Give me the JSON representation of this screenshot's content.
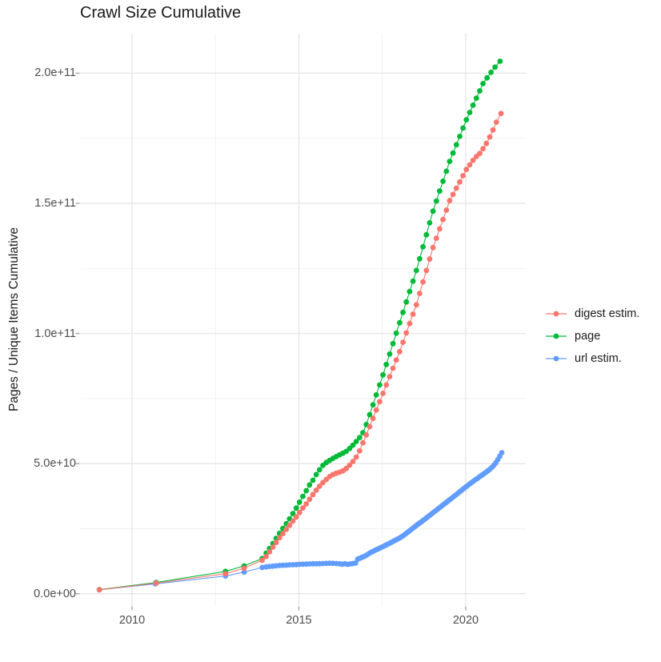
{
  "chart_data": {
    "type": "scatter",
    "title": "Crawl Size Cumulative",
    "xlabel": "",
    "ylabel": "Pages / Unique Items Cumulative",
    "value_unit": "1e9 (billions); y tick labels shown in scientific notation",
    "grid": true,
    "legend_position": "right-middle",
    "background": "#ffffff",
    "grid_major_color": "#e7e7e7",
    "grid_minor_color": "#f1f1f1",
    "axis_tick_color": "#999999",
    "x_domain": [
      2008.44,
      2021.8
    ],
    "y_domain_e9": [
      -4.7,
      215.2
    ],
    "x_axis": {
      "major_ticks": [
        {
          "year": 2010,
          "label": "2010"
        },
        {
          "year": 2015,
          "label": "2015"
        },
        {
          "year": 2020,
          "label": "2020"
        }
      ],
      "minor_ticks_years": [
        2012.5,
        2017.5
      ]
    },
    "y_axis": {
      "major_ticks": [
        {
          "value_e9": 0,
          "label": "0.0e+00"
        },
        {
          "value_e9": 50,
          "label": "5.0e+10"
        },
        {
          "value_e9": 100,
          "label": "1.0e+11"
        },
        {
          "value_e9": 150,
          "label": "1.5e+11"
        },
        {
          "value_e9": 200,
          "label": "2.0e+11"
        }
      ],
      "minor_ticks_e9": [
        25,
        75,
        125,
        175
      ]
    },
    "point_draw_order": [
      "page",
      "url estim.",
      "digest estim."
    ],
    "series": [
      {
        "name": "digest estim.",
        "color": "#F8766D",
        "points_year_value_e9": [
          [
            2009.02,
            1.5
          ],
          [
            2010.72,
            4.05
          ],
          [
            2012.8,
            7.7
          ],
          [
            2013.36,
            9.8
          ],
          [
            2013.9,
            12.9
          ],
          [
            2014.02,
            14.3
          ],
          [
            2014.12,
            16.1
          ],
          [
            2014.22,
            17.9
          ],
          [
            2014.32,
            19.7
          ],
          [
            2014.42,
            21.5
          ],
          [
            2014.52,
            23.1
          ],
          [
            2014.62,
            24.7
          ],
          [
            2014.72,
            26.3
          ],
          [
            2014.82,
            27.9
          ],
          [
            2014.92,
            29.5
          ],
          [
            2015.02,
            31.2
          ],
          [
            2015.12,
            32.9
          ],
          [
            2015.22,
            34.5
          ],
          [
            2015.32,
            36.3
          ],
          [
            2015.42,
            38.1
          ],
          [
            2015.52,
            39.8
          ],
          [
            2015.62,
            41.3
          ],
          [
            2015.72,
            42.7
          ],
          [
            2015.82,
            43.9
          ],
          [
            2015.92,
            45.0
          ],
          [
            2016.02,
            45.8
          ],
          [
            2016.12,
            46.3
          ],
          [
            2016.22,
            46.7
          ],
          [
            2016.32,
            47.2
          ],
          [
            2016.42,
            48.1
          ],
          [
            2016.52,
            49.4
          ],
          [
            2016.62,
            50.8
          ],
          [
            2016.72,
            52.5
          ],
          [
            2016.82,
            54.9
          ],
          [
            2016.92,
            58.0
          ],
          [
            2017.02,
            61.0
          ],
          [
            2017.12,
            64.2
          ],
          [
            2017.22,
            67.4
          ],
          [
            2017.32,
            70.6
          ],
          [
            2017.42,
            73.8
          ],
          [
            2017.52,
            77.0
          ],
          [
            2017.62,
            80.2
          ],
          [
            2017.72,
            83.4
          ],
          [
            2017.82,
            86.6
          ],
          [
            2017.92,
            89.8
          ],
          [
            2018.02,
            93.0
          ],
          [
            2018.12,
            96.6
          ],
          [
            2018.22,
            100.2
          ],
          [
            2018.32,
            103.8
          ],
          [
            2018.42,
            107.4
          ],
          [
            2018.52,
            111.0
          ],
          [
            2018.62,
            115.4
          ],
          [
            2018.72,
            119.8
          ],
          [
            2018.82,
            124.2
          ],
          [
            2018.92,
            128.6
          ],
          [
            2019.02,
            133.0
          ],
          [
            2019.12,
            136.6
          ],
          [
            2019.22,
            140.2
          ],
          [
            2019.32,
            143.8
          ],
          [
            2019.42,
            147.4
          ],
          [
            2019.52,
            151.0
          ],
          [
            2019.62,
            153.4
          ],
          [
            2019.72,
            155.8
          ],
          [
            2019.82,
            158.2
          ],
          [
            2019.92,
            160.6
          ],
          [
            2020.02,
            163.0
          ],
          [
            2020.12,
            164.8
          ],
          [
            2020.22,
            166.5
          ],
          [
            2020.32,
            168.0
          ],
          [
            2020.42,
            169.2
          ],
          [
            2020.52,
            171.0
          ],
          [
            2020.62,
            173.0
          ],
          [
            2020.72,
            175.5
          ],
          [
            2020.82,
            178.2
          ],
          [
            2020.92,
            181.2
          ],
          [
            2021.06,
            184.5
          ]
        ]
      },
      {
        "name": "page",
        "color": "#00BA38",
        "points_year_value_e9": [
          [
            2009.02,
            1.6
          ],
          [
            2010.72,
            4.3
          ],
          [
            2012.8,
            8.6
          ],
          [
            2013.36,
            10.7
          ],
          [
            2013.9,
            13.5
          ],
          [
            2014.02,
            15.6
          ],
          [
            2014.12,
            17.4
          ],
          [
            2014.22,
            19.3
          ],
          [
            2014.32,
            21.3
          ],
          [
            2014.42,
            23.2
          ],
          [
            2014.52,
            25.1
          ],
          [
            2014.62,
            26.9
          ],
          [
            2014.72,
            28.8
          ],
          [
            2014.82,
            30.8
          ],
          [
            2014.92,
            32.9
          ],
          [
            2015.02,
            35.2
          ],
          [
            2015.12,
            37.4
          ],
          [
            2015.22,
            39.6
          ],
          [
            2015.32,
            41.8
          ],
          [
            2015.42,
            43.6
          ],
          [
            2015.52,
            45.8
          ],
          [
            2015.62,
            47.6
          ],
          [
            2015.72,
            49.3
          ],
          [
            2015.82,
            50.4
          ],
          [
            2015.92,
            51.2
          ],
          [
            2016.02,
            52.0
          ],
          [
            2016.12,
            52.7
          ],
          [
            2016.22,
            53.4
          ],
          [
            2016.32,
            54.0
          ],
          [
            2016.42,
            54.7
          ],
          [
            2016.52,
            55.8
          ],
          [
            2016.62,
            57.1
          ],
          [
            2016.72,
            58.5
          ],
          [
            2016.82,
            60.0
          ],
          [
            2016.92,
            61.9
          ],
          [
            2017.02,
            65.0
          ],
          [
            2017.12,
            68.8
          ],
          [
            2017.22,
            72.6
          ],
          [
            2017.32,
            76.4
          ],
          [
            2017.42,
            80.2
          ],
          [
            2017.52,
            84.1
          ],
          [
            2017.62,
            88.1
          ],
          [
            2017.72,
            92.1
          ],
          [
            2017.82,
            96.1
          ],
          [
            2017.92,
            100.1
          ],
          [
            2018.02,
            104.1
          ],
          [
            2018.12,
            108.1
          ],
          [
            2018.22,
            112.1
          ],
          [
            2018.32,
            116.1
          ],
          [
            2018.42,
            120.1
          ],
          [
            2018.52,
            124.2
          ],
          [
            2018.62,
            128.7
          ],
          [
            2018.72,
            133.3
          ],
          [
            2018.82,
            137.9
          ],
          [
            2018.92,
            142.5
          ],
          [
            2019.02,
            147.0
          ],
          [
            2019.12,
            150.9
          ],
          [
            2019.22,
            154.7
          ],
          [
            2019.32,
            158.5
          ],
          [
            2019.42,
            162.3
          ],
          [
            2019.52,
            166.1
          ],
          [
            2019.62,
            169.3
          ],
          [
            2019.72,
            172.5
          ],
          [
            2019.82,
            175.7
          ],
          [
            2019.92,
            178.9
          ],
          [
            2020.02,
            182.1
          ],
          [
            2020.12,
            184.9
          ],
          [
            2020.22,
            187.7
          ],
          [
            2020.32,
            190.4
          ],
          [
            2020.42,
            193.2
          ],
          [
            2020.52,
            196.0
          ],
          [
            2020.64,
            198.2
          ],
          [
            2020.76,
            200.3
          ],
          [
            2020.88,
            202.3
          ],
          [
            2021.03,
            204.6
          ]
        ]
      },
      {
        "name": "url estim.",
        "color": "#619CFF",
        "points_year_value_e9": [
          [
            2009.02,
            1.5
          ],
          [
            2010.7,
            3.8
          ],
          [
            2012.8,
            6.8
          ],
          [
            2013.36,
            8.3
          ],
          [
            2013.9,
            10.1
          ],
          [
            2014.02,
            10.3
          ],
          [
            2014.12,
            10.5
          ],
          [
            2014.22,
            10.6
          ],
          [
            2014.32,
            10.7
          ],
          [
            2014.42,
            10.85
          ],
          [
            2014.52,
            10.95
          ],
          [
            2014.62,
            11.0
          ],
          [
            2014.72,
            11.1
          ],
          [
            2014.82,
            11.15
          ],
          [
            2014.92,
            11.2
          ],
          [
            2015.02,
            11.3
          ],
          [
            2015.12,
            11.35
          ],
          [
            2015.22,
            11.4
          ],
          [
            2015.32,
            11.45
          ],
          [
            2015.42,
            11.5
          ],
          [
            2015.52,
            11.5
          ],
          [
            2015.62,
            11.55
          ],
          [
            2015.72,
            11.6
          ],
          [
            2015.82,
            11.65
          ],
          [
            2015.92,
            11.7
          ],
          [
            2016.02,
            11.7
          ],
          [
            2016.12,
            11.6
          ],
          [
            2016.22,
            11.5
          ],
          [
            2016.3,
            11.35
          ],
          [
            2016.38,
            11.5
          ],
          [
            2016.46,
            11.3
          ],
          [
            2016.54,
            11.45
          ],
          [
            2016.62,
            11.6
          ],
          [
            2016.7,
            11.8
          ],
          [
            2016.76,
            13.3
          ],
          [
            2016.82,
            13.6
          ],
          [
            2016.88,
            13.9
          ],
          [
            2016.94,
            14.2
          ],
          [
            2017.0,
            14.6
          ],
          [
            2017.06,
            15.1
          ],
          [
            2017.12,
            15.6
          ],
          [
            2017.18,
            16.0
          ],
          [
            2017.24,
            16.4
          ],
          [
            2017.3,
            16.8
          ],
          [
            2017.36,
            17.1
          ],
          [
            2017.42,
            17.5
          ],
          [
            2017.48,
            17.9
          ],
          [
            2017.54,
            18.2
          ],
          [
            2017.6,
            18.6
          ],
          [
            2017.66,
            19.0
          ],
          [
            2017.72,
            19.4
          ],
          [
            2017.78,
            19.8
          ],
          [
            2017.84,
            20.2
          ],
          [
            2017.9,
            20.6
          ],
          [
            2017.96,
            21.0
          ],
          [
            2018.02,
            21.4
          ],
          [
            2018.08,
            21.9
          ],
          [
            2018.14,
            22.4
          ],
          [
            2018.2,
            23.0
          ],
          [
            2018.26,
            23.6
          ],
          [
            2018.32,
            24.2
          ],
          [
            2018.38,
            24.8
          ],
          [
            2018.44,
            25.4
          ],
          [
            2018.5,
            26.0
          ],
          [
            2018.56,
            26.6
          ],
          [
            2018.62,
            27.2
          ],
          [
            2018.68,
            27.7
          ],
          [
            2018.74,
            28.3
          ],
          [
            2018.8,
            28.9
          ],
          [
            2018.86,
            29.5
          ],
          [
            2018.92,
            30.1
          ],
          [
            2018.98,
            30.7
          ],
          [
            2019.04,
            31.3
          ],
          [
            2019.1,
            31.9
          ],
          [
            2019.16,
            32.5
          ],
          [
            2019.22,
            33.1
          ],
          [
            2019.28,
            33.7
          ],
          [
            2019.34,
            34.3
          ],
          [
            2019.4,
            34.9
          ],
          [
            2019.46,
            35.5
          ],
          [
            2019.52,
            36.1
          ],
          [
            2019.58,
            36.7
          ],
          [
            2019.64,
            37.3
          ],
          [
            2019.7,
            37.9
          ],
          [
            2019.76,
            38.5
          ],
          [
            2019.82,
            39.2
          ],
          [
            2019.88,
            39.8
          ],
          [
            2019.94,
            40.4
          ],
          [
            2020.0,
            41.0
          ],
          [
            2020.06,
            41.6
          ],
          [
            2020.12,
            42.2
          ],
          [
            2020.18,
            42.8
          ],
          [
            2020.24,
            43.3
          ],
          [
            2020.3,
            43.9
          ],
          [
            2020.36,
            44.4
          ],
          [
            2020.42,
            45.0
          ],
          [
            2020.48,
            45.5
          ],
          [
            2020.54,
            46.1
          ],
          [
            2020.6,
            46.6
          ],
          [
            2020.66,
            47.2
          ],
          [
            2020.72,
            47.8
          ],
          [
            2020.78,
            48.5
          ],
          [
            2020.84,
            49.3
          ],
          [
            2020.9,
            50.3
          ],
          [
            2020.96,
            51.5
          ],
          [
            2021.02,
            52.8
          ],
          [
            2021.08,
            54.2
          ]
        ]
      }
    ]
  }
}
